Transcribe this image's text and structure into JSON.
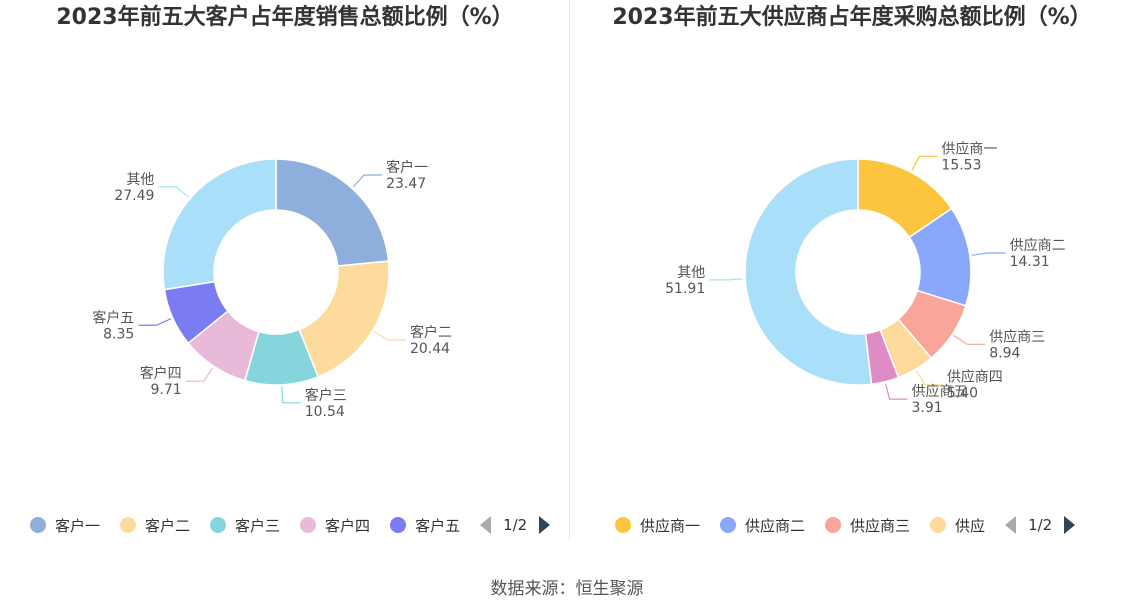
{
  "source_label": "数据来源：恒生聚源",
  "chart_data": [
    {
      "type": "pie",
      "title": "2023年前五大客户占年度销售总额比例（%）",
      "slices": [
        {
          "name": "客户一",
          "value": 23.47,
          "label": "23.47",
          "color": "#8eaedb"
        },
        {
          "name": "客户二",
          "value": 20.44,
          "label": "20.44",
          "color": "#fddb9c"
        },
        {
          "name": "客户三",
          "value": 10.54,
          "label": "10.54",
          "color": "#86d5dc"
        },
        {
          "name": "客户四",
          "value": 9.71,
          "label": "9.71",
          "color": "#e8b9d9"
        },
        {
          "name": "客户五",
          "value": 8.35,
          "label": "8.35",
          "color": "#7b7cf2"
        },
        {
          "name": "其他",
          "value": 27.49,
          "label": "27.49",
          "color": "#a9dff9"
        }
      ],
      "legend": {
        "items": [
          "客户一",
          "客户二",
          "客户三",
          "客户四",
          "客户五"
        ],
        "page": "1/2",
        "placement": "bottom"
      }
    },
    {
      "type": "pie",
      "title": "2023年前五大供应商占年度采购总额比例（%）",
      "slices": [
        {
          "name": "供应商一",
          "value": 15.53,
          "label": "15.53",
          "color": "#fdc53e"
        },
        {
          "name": "供应商二",
          "value": 14.31,
          "label": "14.31",
          "color": "#8aa8fb"
        },
        {
          "name": "供应商三",
          "value": 8.94,
          "label": "8.94",
          "color": "#f9a59a"
        },
        {
          "name": "供应商四",
          "value": 5.4,
          "label": "5.40",
          "color": "#fdd99b"
        },
        {
          "name": "供应商五",
          "value": 3.91,
          "label": "3.91",
          "color": "#de8bc6"
        },
        {
          "name": "其他",
          "value": 51.91,
          "label": "51.91",
          "color": "#a9dff9"
        }
      ],
      "legend": {
        "items": [
          "供应商一",
          "供应商二",
          "供应商三",
          "供应"
        ],
        "page": "1/2",
        "placement": "bottom"
      }
    }
  ]
}
